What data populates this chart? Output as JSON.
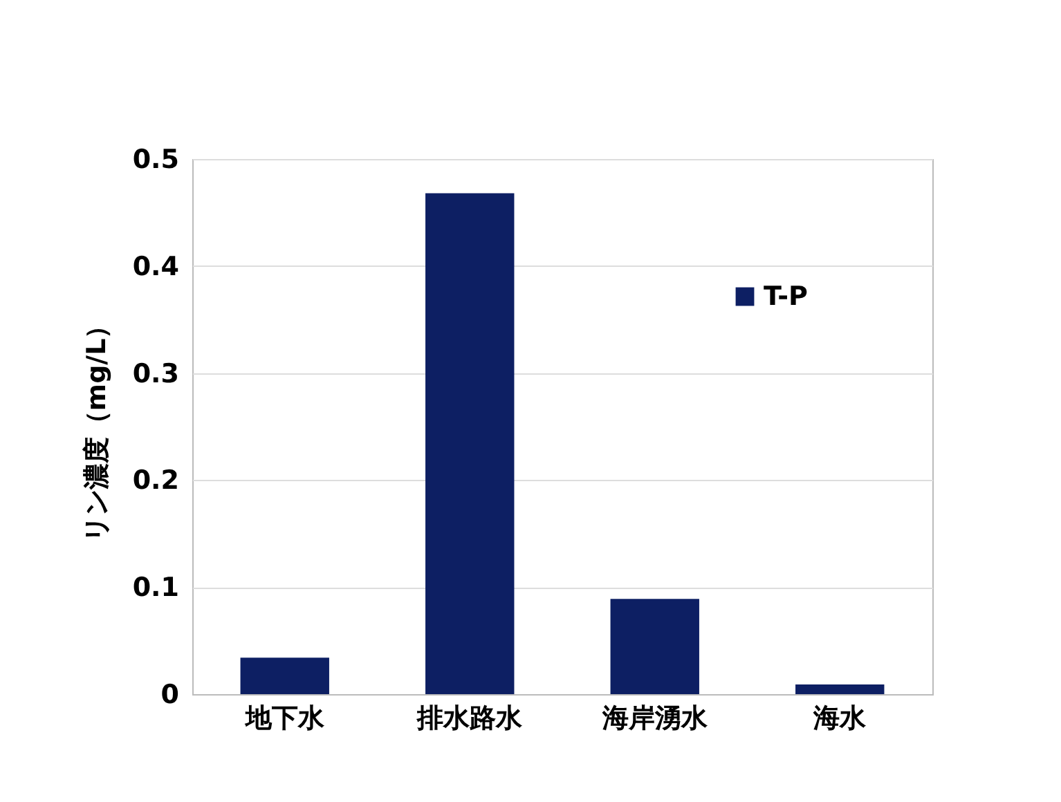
{
  "chart_data": {
    "type": "bar",
    "ylabel": "リン濃度（mg/L）",
    "categories": [
      "地下水",
      "排水路水",
      "海岸湧水",
      "海水"
    ],
    "series": [
      {
        "name": "T-P",
        "color": "#0d1f63",
        "values": [
          0.034,
          0.468,
          0.089,
          0.009
        ]
      }
    ],
    "ylim": [
      0,
      0.5
    ],
    "yticks": [
      0,
      0.1,
      0.2,
      0.3,
      0.4,
      0.5
    ],
    "grid": "y",
    "legend": "top right"
  }
}
